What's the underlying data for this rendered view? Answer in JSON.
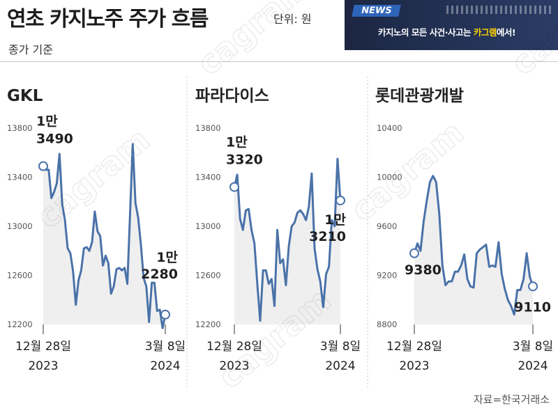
{
  "header": {
    "title": "연초 카지노주 주가 흐름",
    "unit": "단위: 원",
    "subtitle": "종가 기준"
  },
  "banner": {
    "tag": "NEWS",
    "text_prefix": "카지노의 모든 사건·사고는 ",
    "text_highlight": "카그램",
    "text_suffix": "에서!",
    "colors": {
      "background": "#1b2642",
      "tag": "#2e65b8",
      "highlight": "#ffd400"
    }
  },
  "source": "자료=한국거래소",
  "watermark": "cagram",
  "line_color": "#4a72a8",
  "chart_data": [
    {
      "type": "line",
      "title": "GKL",
      "ylim": [
        12200,
        13800
      ],
      "yticks": [
        12200,
        12600,
        13000,
        13400,
        13800
      ],
      "x_start_label": [
        "12월 28일",
        "2023"
      ],
      "x_end_label": [
        "3월 8일",
        "2024"
      ],
      "start_label": [
        "1만",
        "3490"
      ],
      "end_label": [
        "1만",
        "2280"
      ],
      "values": [
        13490,
        13460,
        13460,
        13230,
        13280,
        13350,
        13590,
        13180,
        13050,
        12820,
        12780,
        12630,
        12360,
        12560,
        12640,
        12820,
        12830,
        12800,
        12870,
        13120,
        12960,
        12920,
        12680,
        12760,
        12700,
        12450,
        12510,
        12650,
        12660,
        12640,
        12660,
        12530,
        13090,
        13670,
        13190,
        13070,
        12850,
        12580,
        12510,
        12220,
        12540,
        12540,
        12310,
        12320,
        12170,
        12280
      ]
    },
    {
      "type": "line",
      "title": "파라다이스",
      "ylim": [
        12200,
        13800
      ],
      "yticks": [
        12200,
        12600,
        13000,
        13400,
        13800
      ],
      "x_start_label": [
        "12월 28일",
        "2023"
      ],
      "x_end_label": [
        "3월 8일",
        "2024"
      ],
      "start_label": [
        "1만",
        "3320"
      ],
      "end_label": [
        "1만",
        "3210"
      ],
      "values": [
        13320,
        13420,
        13060,
        12970,
        13130,
        13140,
        12970,
        12860,
        12530,
        12230,
        12640,
        12640,
        12530,
        12570,
        12350,
        12970,
        12700,
        12730,
        12520,
        12840,
        13000,
        13030,
        13110,
        13130,
        13100,
        13050,
        13160,
        13430,
        12820,
        12650,
        12550,
        12340,
        12610,
        12670,
        13050,
        13000,
        13550,
        13210
      ]
    },
    {
      "type": "line",
      "title": "롯데관광개발",
      "ylim": [
        8800,
        10400
      ],
      "yticks": [
        8800,
        9200,
        9600,
        10000,
        10400
      ],
      "x_start_label": [
        "12월 28일",
        "2023"
      ],
      "x_end_label": [
        "3월 8일",
        "2024"
      ],
      "start_label": [
        "",
        "9380"
      ],
      "end_label": [
        "",
        "9110"
      ],
      "values": [
        9380,
        9460,
        9400,
        9640,
        9810,
        9960,
        10010,
        9960,
        9700,
        9280,
        9120,
        9150,
        9150,
        9230,
        9230,
        9280,
        9370,
        9170,
        9110,
        9100,
        9380,
        9410,
        9430,
        9450,
        9270,
        9280,
        9270,
        9470,
        9210,
        9090,
        9000,
        8950,
        8880,
        9080,
        9080,
        9170,
        9380,
        9190,
        9110
      ]
    }
  ]
}
